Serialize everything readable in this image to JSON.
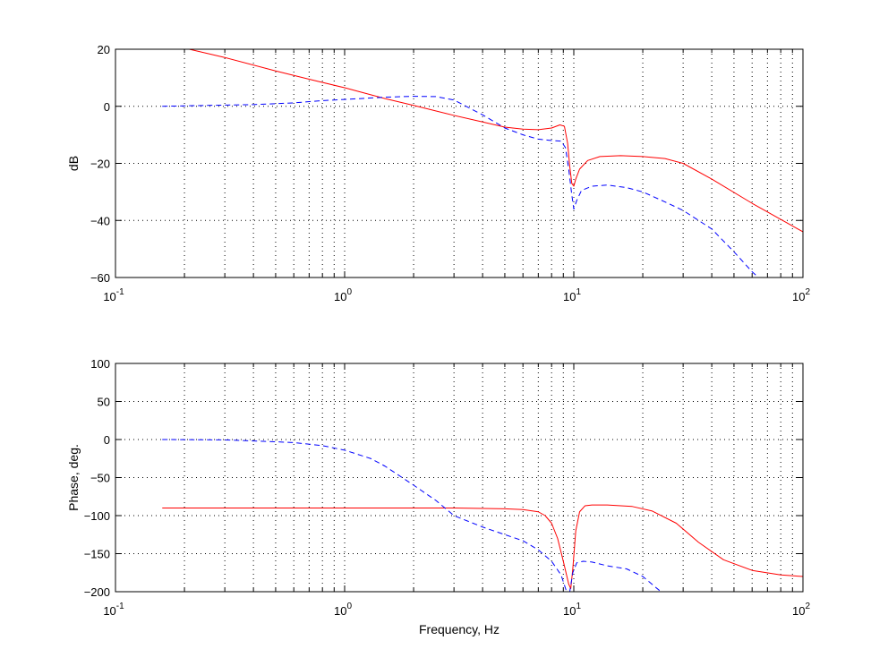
{
  "chart_data": [
    {
      "type": "line",
      "title": "",
      "xlabel": "",
      "ylabel": "dB",
      "xscale": "log",
      "xlim": [
        0.1,
        100
      ],
      "ylim": [
        -60,
        20
      ],
      "grid": true,
      "x_ticks": [
        {
          "base": "10",
          "exp": "-1"
        },
        {
          "base": "10",
          "exp": "0"
        },
        {
          "base": "10",
          "exp": "1"
        },
        {
          "base": "10",
          "exp": "2"
        }
      ],
      "y_ticks": [
        "20",
        "0",
        "−20",
        "−40",
        "−60"
      ],
      "series": [
        {
          "style": "solid",
          "color": "#ff0000",
          "points": [
            [
              0.21,
              20
            ],
            [
              0.3,
              17.1
            ],
            [
              0.5,
              12.4
            ],
            [
              0.7,
              9.5
            ],
            [
              1,
              6.5
            ],
            [
              1.5,
              2.7
            ],
            [
              2,
              0.3
            ],
            [
              3,
              -3.2
            ],
            [
              4,
              -5.5
            ],
            [
              5,
              -7.3
            ],
            [
              6,
              -8
            ],
            [
              7,
              -8.2
            ],
            [
              8,
              -7.6
            ],
            [
              8.7,
              -6.5
            ],
            [
              9.1,
              -7
            ],
            [
              9.4,
              -13
            ],
            [
              9.6,
              -21
            ],
            [
              9.8,
              -27
            ],
            [
              10,
              -28
            ],
            [
              10.2,
              -25.5
            ],
            [
              10.6,
              -22
            ],
            [
              11.5,
              -19
            ],
            [
              13,
              -17.6
            ],
            [
              16,
              -17.3
            ],
            [
              20,
              -17.6
            ],
            [
              25,
              -18.3
            ],
            [
              30,
              -20
            ],
            [
              40,
              -25.5
            ],
            [
              60,
              -34
            ],
            [
              100,
              -44
            ]
          ]
        },
        {
          "style": "dashed",
          "color": "#0000ff",
          "points": [
            [
              0.16,
              0
            ],
            [
              0.25,
              0.3
            ],
            [
              0.4,
              0.6
            ],
            [
              0.6,
              1.2
            ],
            [
              0.8,
              2
            ],
            [
              1,
              2.4
            ],
            [
              1.5,
              3.2
            ],
            [
              2,
              3.5
            ],
            [
              2.5,
              3.4
            ],
            [
              3,
              2.2
            ],
            [
              4,
              -3
            ],
            [
              5,
              -7.6
            ],
            [
              6,
              -10
            ],
            [
              7,
              -11.5
            ],
            [
              8,
              -12
            ],
            [
              8.8,
              -12.2
            ],
            [
              9.2,
              -14.5
            ],
            [
              9.5,
              -22
            ],
            [
              9.8,
              -31
            ],
            [
              10,
              -36
            ],
            [
              10.3,
              -33
            ],
            [
              10.8,
              -29.5
            ],
            [
              12,
              -28
            ],
            [
              14,
              -27.6
            ],
            [
              17,
              -28.5
            ],
            [
              20,
              -30
            ],
            [
              25,
              -33.5
            ],
            [
              30,
              -36.5
            ],
            [
              40,
              -43
            ],
            [
              50,
              -51
            ],
            [
              60,
              -58
            ],
            [
              64,
              -60
            ]
          ]
        }
      ]
    },
    {
      "type": "line",
      "title": "",
      "xlabel": "Frequency, Hz",
      "ylabel": "Phase, deg.",
      "xscale": "log",
      "xlim": [
        0.1,
        100
      ],
      "ylim": [
        -200,
        100
      ],
      "grid": true,
      "x_ticks": [
        {
          "base": "10",
          "exp": "-1"
        },
        {
          "base": "10",
          "exp": "0"
        },
        {
          "base": "10",
          "exp": "1"
        },
        {
          "base": "10",
          "exp": "2"
        }
      ],
      "y_ticks": [
        "100",
        "50",
        "0",
        "−50",
        "−100",
        "−150",
        "−200"
      ],
      "series": [
        {
          "style": "solid",
          "color": "#ff0000",
          "points": [
            [
              0.16,
              -90
            ],
            [
              1,
              -90
            ],
            [
              3,
              -90
            ],
            [
              5,
              -91
            ],
            [
              6,
              -92
            ],
            [
              7,
              -95
            ],
            [
              7.5,
              -100
            ],
            [
              8,
              -110
            ],
            [
              8.5,
              -130
            ],
            [
              9,
              -160
            ],
            [
              9.5,
              -190
            ],
            [
              9.7,
              -196
            ],
            [
              9.9,
              -170
            ],
            [
              10.2,
              -120
            ],
            [
              10.6,
              -95
            ],
            [
              11.2,
              -87
            ],
            [
              12,
              -86
            ],
            [
              14,
              -86
            ],
            [
              18,
              -88
            ],
            [
              22,
              -94
            ],
            [
              28,
              -110
            ],
            [
              35,
              -135
            ],
            [
              45,
              -158
            ],
            [
              60,
              -172
            ],
            [
              80,
              -178
            ],
            [
              100,
              -180
            ]
          ]
        },
        {
          "style": "dashed",
          "color": "#0000ff",
          "points": [
            [
              0.16,
              0
            ],
            [
              0.3,
              -0.5
            ],
            [
              0.5,
              -3
            ],
            [
              0.6,
              -4
            ],
            [
              0.8,
              -8
            ],
            [
              1,
              -14
            ],
            [
              1.3,
              -25
            ],
            [
              1.5,
              -35
            ],
            [
              2,
              -60
            ],
            [
              2.5,
              -80
            ],
            [
              3,
              -100
            ],
            [
              4,
              -115
            ],
            [
              5,
              -125
            ],
            [
              6,
              -133
            ],
            [
              7,
              -145
            ],
            [
              8,
              -160
            ],
            [
              8.8,
              -178
            ],
            [
              9.3,
              -200
            ],
            [
              9.6,
              -200
            ],
            [
              9.9,
              -175
            ],
            [
              10.3,
              -162
            ],
            [
              11,
              -160
            ],
            [
              12,
              -161
            ],
            [
              14,
              -166
            ],
            [
              17,
              -170
            ],
            [
              20,
              -180
            ],
            [
              24,
              -200
            ]
          ]
        }
      ]
    }
  ]
}
